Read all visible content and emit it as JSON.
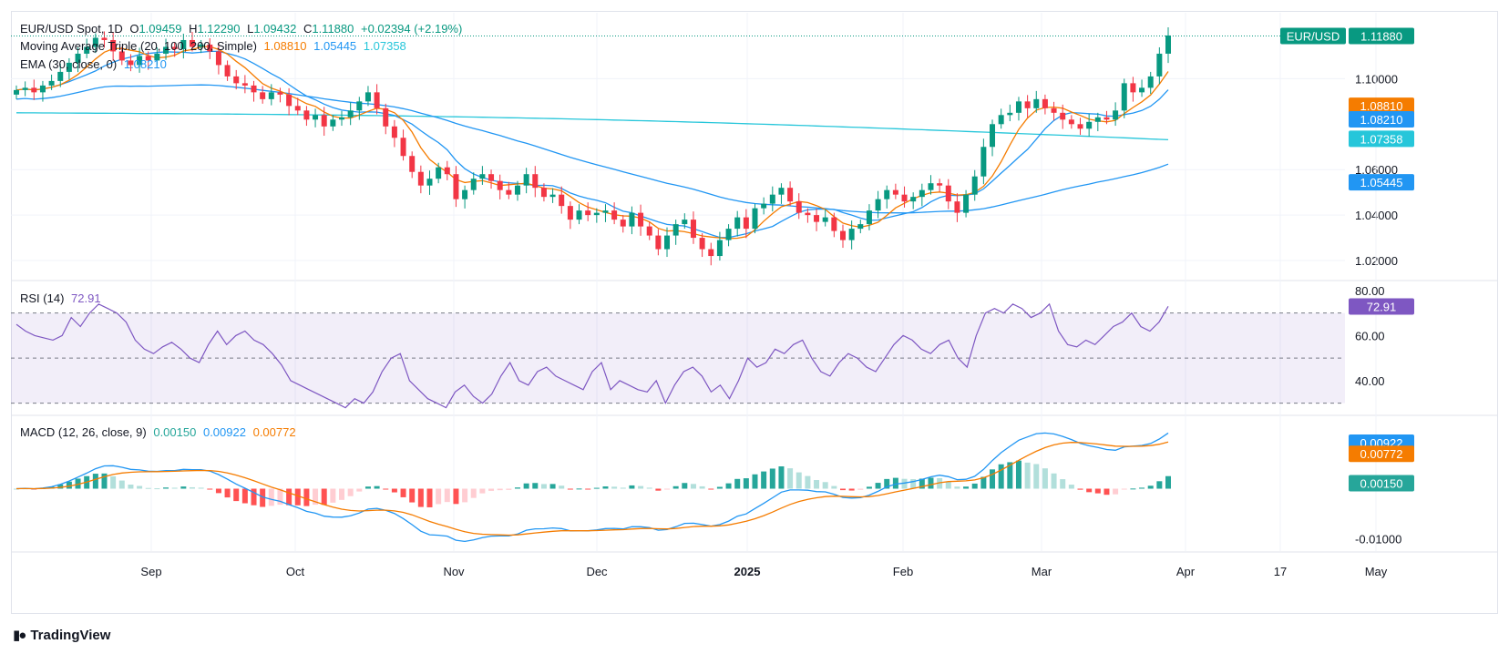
{
  "header": {
    "symbol": "EUR/USD Spot, 1D",
    "o_label": "O",
    "o": "1.09459",
    "h_label": "H",
    "h": "1.12290",
    "l_label": "L",
    "l": "1.09432",
    "c_label": "C",
    "c": "1.11880",
    "change": "+0.02394 (+2.19%)"
  },
  "ma_legend": {
    "label": "Moving Average Triple (20, 100, 200, Simple)",
    "v20": "1.08810",
    "v100": "1.05445",
    "v200": "1.07358"
  },
  "ema_legend": {
    "label": "EMA (30, close, 0)",
    "value": "1.08210"
  },
  "rsi_legend": {
    "label": "RSI (14)",
    "value": "72.91"
  },
  "macd_legend": {
    "label": "MACD (12, 26, close, 9)",
    "hist": "0.00150",
    "macd": "0.00922",
    "signal": "0.00772"
  },
  "price_badges": [
    {
      "text": "EUR/USD",
      "value": "1.11880",
      "color": "#089981"
    },
    {
      "value": "1.08810",
      "color": "#f57c00"
    },
    {
      "value": "1.08210",
      "color": "#2196f3"
    },
    {
      "value": "1.07358",
      "color": "#26c6da"
    },
    {
      "value": "1.05445",
      "color": "#2196f3"
    }
  ],
  "rsi_badge": {
    "value": "72.91",
    "color": "#7e57c2"
  },
  "macd_badges": [
    {
      "value": "0.00922",
      "color": "#2196f3"
    },
    {
      "value": "0.00772",
      "color": "#f57c00"
    },
    {
      "value": "0.00150",
      "color": "#26a69a"
    }
  ],
  "brand": "TradingView",
  "colors": {
    "up": "#089981",
    "down": "#f23645",
    "ma20": "#f57c00",
    "ma100": "#2196f3",
    "ma200": "#26c6da",
    "ema": "#2196f3",
    "rsi": "#7e57c2",
    "macd": "#2196f3",
    "signal": "#f57c00"
  },
  "chart_data": [
    {
      "type": "candlestick",
      "title": "EUR/USD Spot, 1D",
      "x_ticks": [
        "Sep",
        "Oct",
        "Nov",
        "Dec",
        "2025",
        "Feb",
        "Mar",
        "Apr",
        "17",
        "May"
      ],
      "y_ticks": [
        "1.02000",
        "1.04000",
        "1.06000",
        "1.10000"
      ],
      "ylim": [
        1.012,
        1.125
      ],
      "candles_close": [
        1.095,
        1.096,
        1.094,
        1.097,
        1.099,
        1.103,
        1.107,
        1.111,
        1.114,
        1.118,
        1.117,
        1.112,
        1.108,
        1.106,
        1.11,
        1.108,
        1.111,
        1.114,
        1.113,
        1.117,
        1.114,
        1.115,
        1.112,
        1.106,
        1.101,
        1.098,
        1.097,
        1.094,
        1.091,
        1.094,
        1.093,
        1.088,
        1.086,
        1.082,
        1.084,
        1.079,
        1.082,
        1.083,
        1.086,
        1.09,
        1.094,
        1.087,
        1.079,
        1.074,
        1.066,
        1.059,
        1.053,
        1.056,
        1.061,
        1.058,
        1.047,
        1.051,
        1.056,
        1.058,
        1.055,
        1.051,
        1.049,
        1.053,
        1.058,
        1.052,
        1.048,
        1.049,
        1.044,
        1.038,
        1.042,
        1.04,
        1.041,
        1.042,
        1.038,
        1.035,
        1.041,
        1.035,
        1.031,
        1.025,
        1.031,
        1.036,
        1.038,
        1.03,
        1.025,
        1.022,
        1.029,
        1.034,
        1.039,
        1.034,
        1.043,
        1.045,
        1.049,
        1.052,
        1.046,
        1.041,
        1.04,
        1.037,
        1.039,
        1.033,
        1.029,
        1.034,
        1.036,
        1.042,
        1.047,
        1.051,
        1.049,
        1.046,
        1.048,
        1.051,
        1.054,
        1.053,
        1.046,
        1.041,
        1.049,
        1.057,
        1.07,
        1.08,
        1.084,
        1.085,
        1.09,
        1.087,
        1.091,
        1.087,
        1.085,
        1.082,
        1.08,
        1.078,
        1.081,
        1.083,
        1.082,
        1.086,
        1.098,
        1.094,
        1.096,
        1.101,
        1.111,
        1.119
      ],
      "ma20_values": "series sampled from chart",
      "ma100_values": "series sampled from chart",
      "ma200_values": "series sampled from chart",
      "ema30_last": 1.0821
    },
    {
      "type": "line",
      "title": "RSI (14)",
      "y_ticks": [
        "40.00",
        "60.00",
        "80.00"
      ],
      "ylim": [
        25,
        82
      ],
      "levels": [
        30,
        50,
        70
      ],
      "values": [
        65,
        62,
        60,
        59,
        58,
        60,
        68,
        64,
        70,
        74,
        72,
        70,
        66,
        58,
        54,
        52,
        55,
        57,
        54,
        50,
        48,
        56,
        62,
        56,
        60,
        62,
        58,
        56,
        52,
        47,
        40,
        38,
        36,
        34,
        32,
        30,
        28,
        32,
        30,
        35,
        44,
        50,
        52,
        40,
        36,
        32,
        30,
        28,
        35,
        38,
        33,
        30,
        34,
        42,
        48,
        40,
        38,
        44,
        46,
        42,
        40,
        38,
        36,
        44,
        48,
        36,
        40,
        38,
        36,
        35,
        40,
        30,
        38,
        44,
        46,
        42,
        35,
        38,
        32,
        40,
        50,
        46,
        48,
        54,
        52,
        56,
        58,
        50,
        44,
        42,
        48,
        52,
        50,
        46,
        44,
        50,
        56,
        60,
        58,
        54,
        52,
        56,
        58,
        50,
        46,
        60,
        70,
        72,
        70,
        74,
        72,
        68,
        70,
        74,
        62,
        56,
        55,
        58,
        56,
        60,
        64,
        66,
        70,
        64,
        62,
        66,
        73
      ],
      "last": 72.91
    },
    {
      "type": "bar",
      "title": "MACD (12, 26, close, 9)",
      "y_ticks": [
        "-0.01000"
      ],
      "ylim": [
        -0.0125,
        0.0125
      ],
      "macd_last": 0.00922,
      "signal_last": 0.00772,
      "hist_last": 0.0015
    }
  ]
}
